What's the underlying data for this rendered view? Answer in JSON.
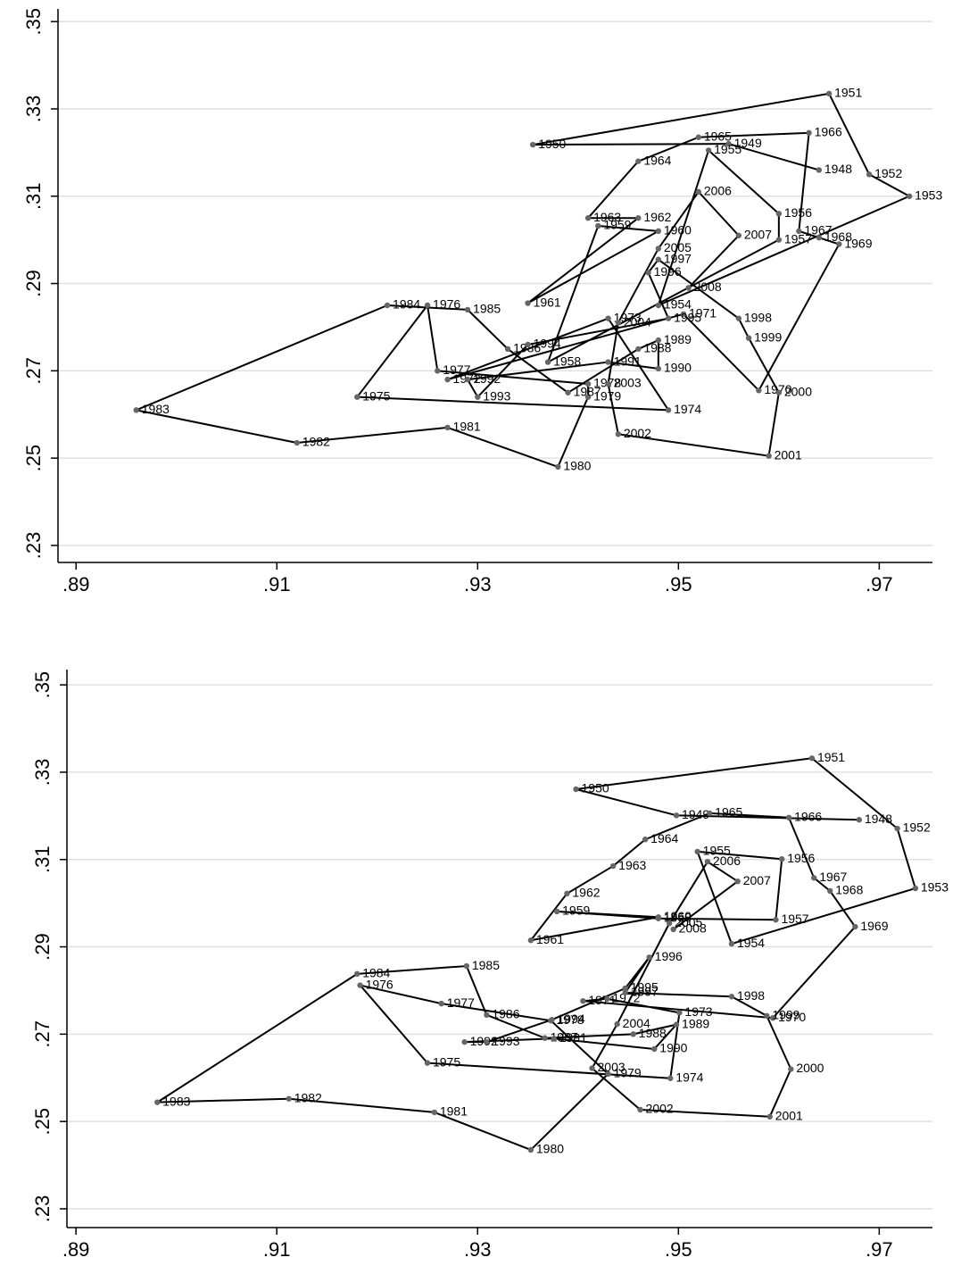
{
  "chart_data": [
    {
      "type": "line",
      "color": "#000000",
      "point_color": "#666666",
      "grid": true,
      "xlim": [
        0.8882,
        0.9753
      ],
      "ylim": [
        0.2261,
        0.3529
      ],
      "xticks": [
        {
          "value": 0.89,
          "label": ".89"
        },
        {
          "value": 0.91,
          "label": ".91"
        },
        {
          "value": 0.93,
          "label": ".93"
        },
        {
          "value": 0.95,
          "label": ".95"
        },
        {
          "value": 0.97,
          "label": ".97"
        }
      ],
      "yticks": [
        {
          "value": 0.23,
          "label": ".23"
        },
        {
          "value": 0.25,
          "label": ".25"
        },
        {
          "value": 0.27,
          "label": ".27"
        },
        {
          "value": 0.29,
          "label": ".29"
        },
        {
          "value": 0.31,
          "label": ".31"
        },
        {
          "value": 0.33,
          "label": ".33"
        },
        {
          "value": 0.35,
          "label": ".35"
        }
      ],
      "labels": [
        "1948",
        "1949",
        "1950",
        "1951",
        "1952",
        "1953",
        "1954",
        "1955",
        "1956",
        "1957",
        "1958",
        "1959",
        "1960",
        "1961",
        "1962",
        "1963",
        "1964",
        "1965",
        "1966",
        "1967",
        "1968",
        "1969",
        "1970",
        "1971",
        "1972",
        "1973",
        "1974",
        "1975",
        "1976",
        "1977",
        "1978",
        "1979",
        "1980",
        "1981",
        "1982",
        "1983",
        "1984",
        "1985",
        "1986",
        "1987",
        "1988",
        "1989",
        "1990",
        "1991",
        "1992",
        "1993",
        "1994",
        "1995",
        "1996",
        "1997",
        "1998",
        "1999",
        "2000",
        "2001",
        "2002",
        "2003",
        "2004",
        "2005",
        "2006",
        "2007",
        "2008"
      ],
      "x": [
        0.964,
        0.955,
        0.9355,
        0.965,
        0.969,
        0.973,
        0.948,
        0.953,
        0.96,
        0.96,
        0.937,
        0.942,
        0.948,
        0.935,
        0.946,
        0.941,
        0.946,
        0.952,
        0.963,
        0.962,
        0.964,
        0.966,
        0.958,
        0.9505,
        0.927,
        0.943,
        0.949,
        0.918,
        0.925,
        0.926,
        0.941,
        0.941,
        0.938,
        0.927,
        0.912,
        0.896,
        0.921,
        0.929,
        0.933,
        0.939,
        0.946,
        0.948,
        0.948,
        0.943,
        0.929,
        0.93,
        0.935,
        0.949,
        0.947,
        0.948,
        0.956,
        0.957,
        0.96,
        0.959,
        0.944,
        0.943,
        0.944,
        0.948,
        0.952,
        0.956,
        0.951
      ],
      "values": [
        0.316,
        0.322,
        0.3218,
        0.3335,
        0.315,
        0.31,
        0.285,
        0.3205,
        0.306,
        0.3,
        0.272,
        0.3032,
        0.302,
        0.2855,
        0.305,
        0.305,
        0.318,
        0.3235,
        0.3245,
        0.302,
        0.3005,
        0.299,
        0.2655,
        0.283,
        0.268,
        0.282,
        0.261,
        0.264,
        0.285,
        0.27,
        0.267,
        0.264,
        0.248,
        0.257,
        0.2535,
        0.261,
        0.285,
        0.284,
        0.275,
        0.265,
        0.275,
        0.277,
        0.2705,
        0.272,
        0.268,
        0.264,
        0.276,
        0.282,
        0.2925,
        0.2955,
        0.282,
        0.2775,
        0.265,
        0.2505,
        0.2555,
        0.267,
        0.281,
        0.298,
        0.311,
        0.301,
        0.289
      ]
    },
    {
      "type": "line",
      "color": "#000000",
      "point_color": "#666666",
      "grid": true,
      "xlim": [
        0.8891,
        0.9753
      ],
      "ylim": [
        0.2257,
        0.3535
      ],
      "xticks": [
        {
          "value": 0.89,
          "label": ".89"
        },
        {
          "value": 0.91,
          "label": ".91"
        },
        {
          "value": 0.93,
          "label": ".93"
        },
        {
          "value": 0.95,
          "label": ".95"
        },
        {
          "value": 0.97,
          "label": ".97"
        }
      ],
      "yticks": [
        {
          "value": 0.23,
          "label": ".23"
        },
        {
          "value": 0.25,
          "label": ".25"
        },
        {
          "value": 0.27,
          "label": ".27"
        },
        {
          "value": 0.29,
          "label": ".29"
        },
        {
          "value": 0.31,
          "label": ".31"
        },
        {
          "value": 0.33,
          "label": ".33"
        },
        {
          "value": 0.35,
          "label": ".35"
        }
      ],
      "labels": [
        "1948",
        "1949",
        "1950",
        "1951",
        "1952",
        "1953",
        "1954",
        "1955",
        "1956",
        "1957",
        "1958",
        "1959",
        "1960",
        "1961",
        "1962",
        "1963",
        "1964",
        "1965",
        "1966",
        "1967",
        "1968",
        "1969",
        "1970",
        "1971",
        "1972",
        "1973",
        "1974",
        "1975",
        "1976",
        "1977",
        "1978",
        "1979",
        "1980",
        "1981",
        "1982",
        "1983",
        "1984",
        "1985",
        "1986",
        "1987",
        "1988",
        "1989",
        "1990",
        "1991",
        "1992",
        "1993",
        "1994",
        "1995",
        "1996",
        "1997",
        "1998",
        "1999",
        "2000",
        "2001",
        "2002",
        "2003",
        "2004",
        "2005",
        "2006",
        "2007",
        "2008"
      ],
      "x": [
        0.968,
        0.9498,
        0.9398,
        0.9633,
        0.9718,
        0.9736,
        0.9553,
        0.9519,
        0.9603,
        0.9597,
        0.948,
        0.9379,
        0.948,
        0.9353,
        0.9389,
        0.9435,
        0.9467,
        0.9531,
        0.961,
        0.9635,
        0.9651,
        0.9676,
        0.9594,
        0.9405,
        0.9429,
        0.9501,
        0.9492,
        0.925,
        0.9183,
        0.9264,
        0.9373,
        0.943,
        0.9353,
        0.9257,
        0.9112,
        0.8981,
        0.918,
        0.9289,
        0.9309,
        0.9367,
        0.9455,
        0.9498,
        0.9476,
        0.9376,
        0.9287,
        0.9309,
        0.9374,
        0.9447,
        0.9471,
        0.9447,
        0.9553,
        0.9588,
        0.9612,
        0.9591,
        0.9462,
        0.9414,
        0.9439,
        0.9491,
        0.9529,
        0.9559,
        0.9495
      ],
      "values": [
        0.3191,
        0.3201,
        0.3261,
        0.3332,
        0.3171,
        0.3034,
        0.2907,
        0.3118,
        0.3101,
        0.2962,
        0.2965,
        0.2981,
        0.2968,
        0.2915,
        0.3022,
        0.3085,
        0.3146,
        0.3206,
        0.3196,
        0.3058,
        0.3028,
        0.2946,
        0.2737,
        0.2776,
        0.2781,
        0.2749,
        0.2599,
        0.2634,
        0.2812,
        0.277,
        0.2731,
        0.2609,
        0.2435,
        0.2521,
        0.2552,
        0.2544,
        0.2838,
        0.2856,
        0.2744,
        0.2691,
        0.27,
        0.2722,
        0.2666,
        0.269,
        0.2682,
        0.2682,
        0.2733,
        0.2805,
        0.2876,
        0.2795,
        0.2786,
        0.2742,
        0.262,
        0.2511,
        0.2527,
        0.2622,
        0.2723,
        0.2954,
        0.3095,
        0.305,
        0.294
      ]
    }
  ]
}
